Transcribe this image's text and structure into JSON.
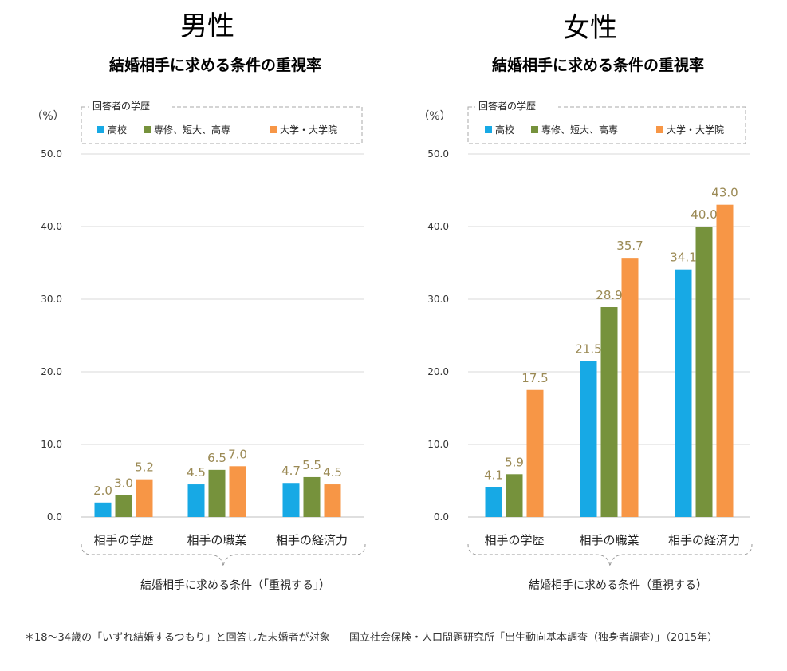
{
  "colors": {
    "high_school": "#17a9e5",
    "vocational": "#76923c",
    "university": "#f79646",
    "label": "#9b8a55",
    "grid": "#d9d9d9"
  },
  "chart_data": [
    {
      "type": "bar",
      "title": "男性",
      "subtitle": "結婚相手に求める条件の重視率",
      "unit_label": "（%）",
      "legend_title": "回答者の学歴",
      "xlabel": "結婚相手に求める条件（「重視する」）",
      "ylabel": "",
      "ylim": [
        0,
        50
      ],
      "yticks": [
        "0.0",
        "10.0",
        "20.0",
        "30.0",
        "40.0",
        "50.0"
      ],
      "categories": [
        "相手の学歴",
        "相手の職業",
        "相手の経済力"
      ],
      "series": [
        {
          "name": "高校",
          "values": [
            2.0,
            4.5,
            4.7
          ],
          "labels": [
            "2.0",
            "4.5",
            "4.7"
          ]
        },
        {
          "name": "専修、短大、高専",
          "values": [
            3.0,
            6.5,
            5.5
          ],
          "labels": [
            "3.0",
            "6.5",
            "5.5"
          ]
        },
        {
          "name": "大学・大学院",
          "values": [
            5.2,
            7.0,
            4.5
          ],
          "labels": [
            "5.2",
            "7.0",
            "4.5"
          ]
        }
      ]
    },
    {
      "type": "bar",
      "title": "女性",
      "subtitle": "結婚相手に求める条件の重視率",
      "unit_label": "（%）",
      "legend_title": "回答者の学歴",
      "xlabel": "結婚相手に求める条件（重視する）",
      "ylabel": "",
      "ylim": [
        0,
        50
      ],
      "yticks": [
        "0.0",
        "10.0",
        "20.0",
        "30.0",
        "40.0",
        "50.0"
      ],
      "categories": [
        "相手の学歴",
        "相手の職業",
        "相手の経済力"
      ],
      "series": [
        {
          "name": "高校",
          "values": [
            4.1,
            21.5,
            34.1
          ],
          "labels": [
            "4.1",
            "21.5",
            "34.1"
          ]
        },
        {
          "name": "専修、短大、高専",
          "values": [
            5.9,
            28.9,
            40.0
          ],
          "labels": [
            "5.9",
            "28.9",
            "40.0"
          ]
        },
        {
          "name": "大学・大学院",
          "values": [
            17.5,
            35.7,
            43.0
          ],
          "labels": [
            "17.5",
            "35.7",
            "43.0"
          ]
        }
      ]
    }
  ],
  "footer": {
    "note": "＊18〜34歳の「いずれ結婚するつもり」と回答した未婚者が対象",
    "source": "国立社会保険・人口問題研究所「出生動向基本調査（独身者調査）」（2015年）"
  }
}
